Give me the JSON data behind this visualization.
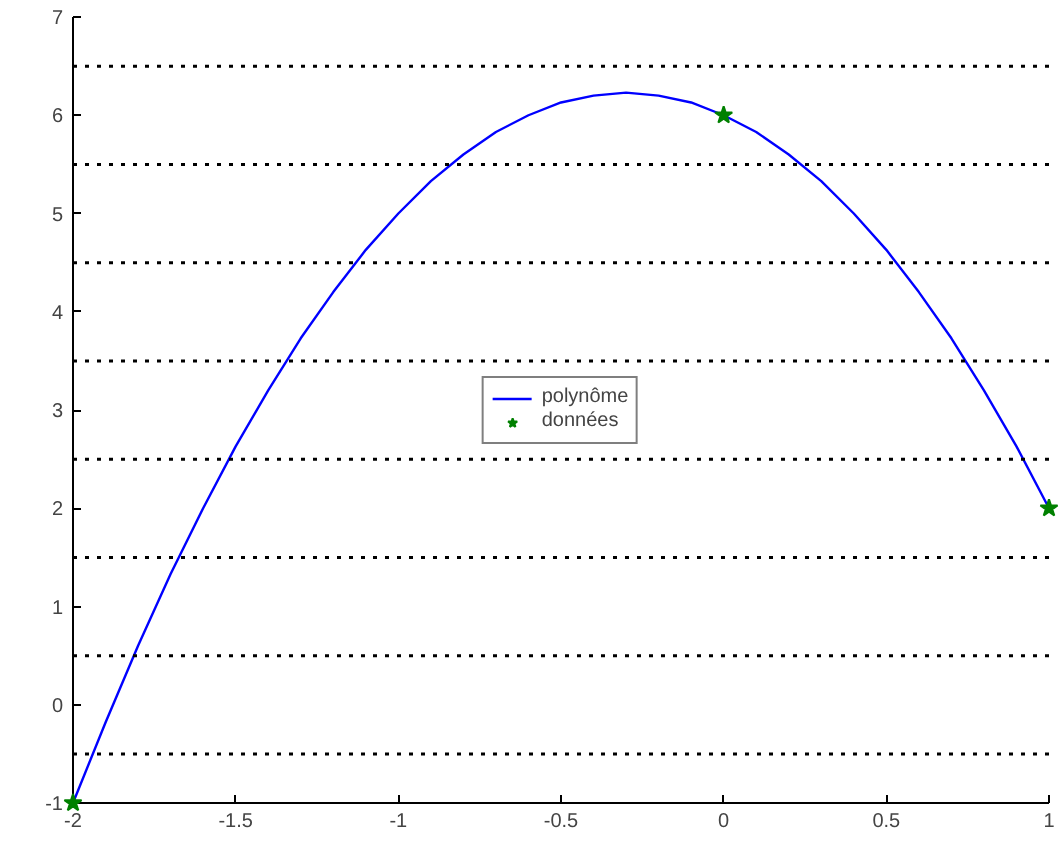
{
  "chart_data": {
    "type": "line",
    "xlim": [
      -2,
      1
    ],
    "ylim": [
      -1,
      7
    ],
    "xticks": [
      -2,
      -1.5,
      -1,
      -0.5,
      0,
      0.5,
      1
    ],
    "yticks": [
      -1,
      0,
      1,
      2,
      3,
      4,
      5,
      6,
      7
    ],
    "grid": false,
    "legend": "center",
    "series": [
      {
        "name": "polynôme",
        "color": "#0000ff",
        "line_style": "solid",
        "marker": "none",
        "x": [
          -2,
          -1.9,
          -1.8,
          -1.7,
          -1.6,
          -1.5,
          -1.4,
          -1.3,
          -1.2,
          -1.1,
          -1,
          -0.9,
          -0.8,
          -0.7,
          -0.6,
          -0.5,
          -0.4,
          -0.3,
          -0.2,
          -0.1,
          0,
          0.1,
          0.2,
          0.3,
          0.4,
          0.5,
          0.6,
          0.7,
          0.8,
          0.9,
          1
        ],
        "values": [
          -1,
          -0.18,
          0.6,
          1.33,
          2,
          2.63,
          3.2,
          3.73,
          4.2,
          4.63,
          5,
          5.33,
          5.6,
          5.83,
          6,
          6.13,
          6.2,
          6.23,
          6.2,
          6.13,
          6,
          5.83,
          5.6,
          5.33,
          5,
          4.63,
          4.2,
          3.73,
          3.2,
          2.63,
          2
        ]
      },
      {
        "name": "données",
        "type": "scatter",
        "color": "#008000",
        "marker": "star",
        "x": [
          -2,
          0,
          1
        ],
        "values": [
          -1,
          6,
          2
        ]
      }
    ],
    "ref_lines": [
      {
        "axis": "y",
        "value": -0.5,
        "color": "#000000",
        "line_style": "dotted"
      },
      {
        "axis": "y",
        "value": 0.5,
        "color": "#000000",
        "line_style": "dotted"
      },
      {
        "axis": "y",
        "value": 1.5,
        "color": "#000000",
        "line_style": "dotted"
      },
      {
        "axis": "y",
        "value": 2.5,
        "color": "#000000",
        "line_style": "dotted"
      },
      {
        "axis": "y",
        "value": 3.5,
        "color": "#000000",
        "line_style": "dotted"
      },
      {
        "axis": "y",
        "value": 4.5,
        "color": "#000000",
        "line_style": "dotted"
      },
      {
        "axis": "y",
        "value": 5.5,
        "color": "#000000",
        "line_style": "dotted"
      },
      {
        "axis": "y",
        "value": 6.5,
        "color": "#000000",
        "line_style": "dotted"
      }
    ]
  }
}
